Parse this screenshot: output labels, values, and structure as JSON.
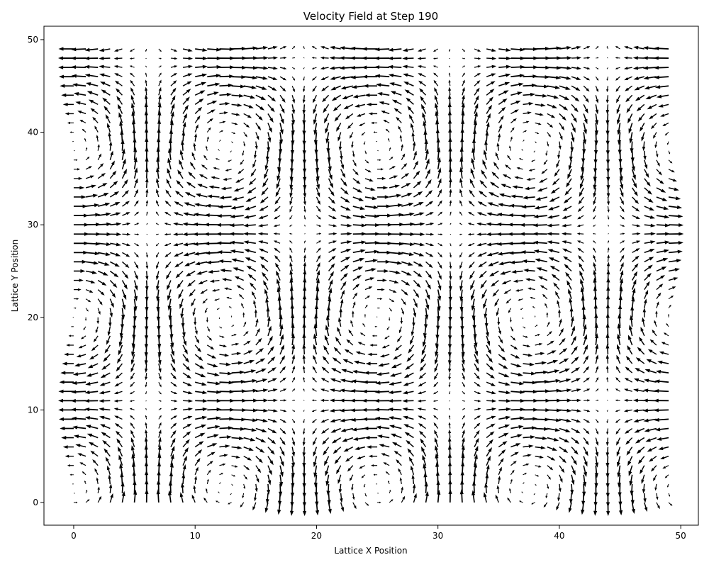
{
  "chart_data": {
    "type": "quiver",
    "title": "Velocity Field at Step 190",
    "xlabel": "Lattice X Position",
    "ylabel": "Lattice Y Position",
    "xlim": [
      -2.45,
      51.45
    ],
    "ylim": [
      -2.45,
      51.45
    ],
    "xticks": [
      0,
      10,
      20,
      30,
      40,
      50
    ],
    "yticks": [
      0,
      10,
      20,
      30,
      40,
      50
    ],
    "x_tick_labels": [
      "0",
      "10",
      "20",
      "30",
      "40",
      "50"
    ],
    "y_tick_labels": [
      "0",
      "10",
      "20",
      "30",
      "40",
      "50"
    ],
    "grid": false,
    "legend": false,
    "arrow_color": "#000000",
    "x_range": [
      0,
      49
    ],
    "y_range": [
      0,
      49
    ],
    "grid_step": 1,
    "field": {
      "u": "-cos(2*pi*x/25) * sin(2*pi*(y-1.5)/37)",
      "v": "sin(2*pi*x/25) * cos(2*pi*(y-1.5)/37) * 0.9",
      "note": "approximate periodic vortex-array field; arrow lengths scaled to the plotted magnitude"
    }
  }
}
